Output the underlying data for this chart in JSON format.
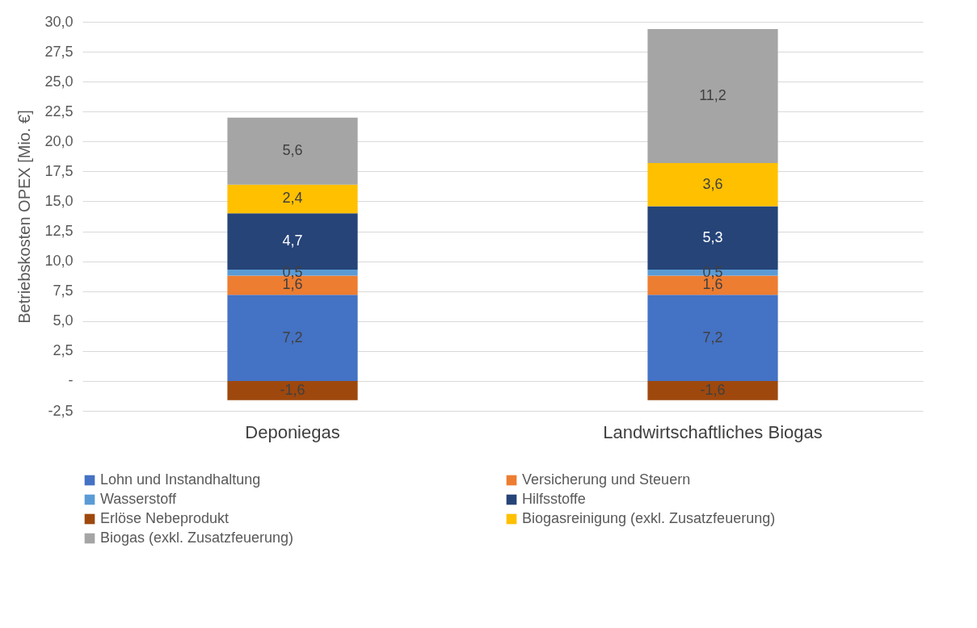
{
  "chart_data": {
    "type": "bar",
    "stacked": true,
    "ylabel": "Betriebskosten OPEX [Mio. €]",
    "categories": [
      "Deponiegas",
      "Landwirtschaftliches Biogas"
    ],
    "series": [
      {
        "name": "Lohn und Instandhaltung",
        "color": "#4472c4",
        "values": [
          7.2,
          7.2
        ],
        "value_labels": [
          "7,2",
          "7,2"
        ]
      },
      {
        "name": "Versicherung und Steuern",
        "color": "#ed7d31",
        "values": [
          1.6,
          1.6
        ],
        "value_labels": [
          "1,6",
          "1,6"
        ]
      },
      {
        "name": "Wasserstoff",
        "color": "#5b9bd5",
        "values": [
          0.5,
          0.5
        ],
        "value_labels": [
          "0,5",
          "0,5"
        ]
      },
      {
        "name": "Hilfsstoffe",
        "color": "#264478",
        "values": [
          4.7,
          5.3
        ],
        "value_labels": [
          "4,7",
          "5,3"
        ]
      },
      {
        "name": " Erlöse Nebeprodukt",
        "color": "#9e480e",
        "values": [
          -1.6,
          -1.6
        ],
        "value_labels": [
          "-1,6",
          "-1,6"
        ]
      },
      {
        "name": "Biogasreinigung (exkl. Zusatzfeuerung)",
        "color": "#ffc000",
        "values": [
          2.4,
          3.6
        ],
        "value_labels": [
          "2,4",
          "3,6"
        ]
      },
      {
        "name": "Biogas (exkl. Zusatzfeuerung)",
        "color": "#a5a5a5",
        "values": [
          5.6,
          11.2
        ],
        "value_labels": [
          "5,6",
          "11,2"
        ]
      }
    ],
    "ylim": [
      -2.5,
      30
    ],
    "yticks": [
      {
        "value": -2.5,
        "label": "-2,5"
      },
      {
        "value": 0,
        "label": "-"
      },
      {
        "value": 2.5,
        "label": "2,5"
      },
      {
        "value": 5,
        "label": "5,0"
      },
      {
        "value": 7.5,
        "label": "7,5"
      },
      {
        "value": 10,
        "label": "10,0"
      },
      {
        "value": 12.5,
        "label": "12,5"
      },
      {
        "value": 15,
        "label": "15,0"
      },
      {
        "value": 17.5,
        "label": "17,5"
      },
      {
        "value": 20,
        "label": "20,0"
      },
      {
        "value": 22.5,
        "label": "22,5"
      },
      {
        "value": 25,
        "label": "25,0"
      },
      {
        "value": 27.5,
        "label": "27,5"
      },
      {
        "value": 30,
        "label": "30,0"
      }
    ],
    "grid": "y",
    "legend": "bottom"
  }
}
